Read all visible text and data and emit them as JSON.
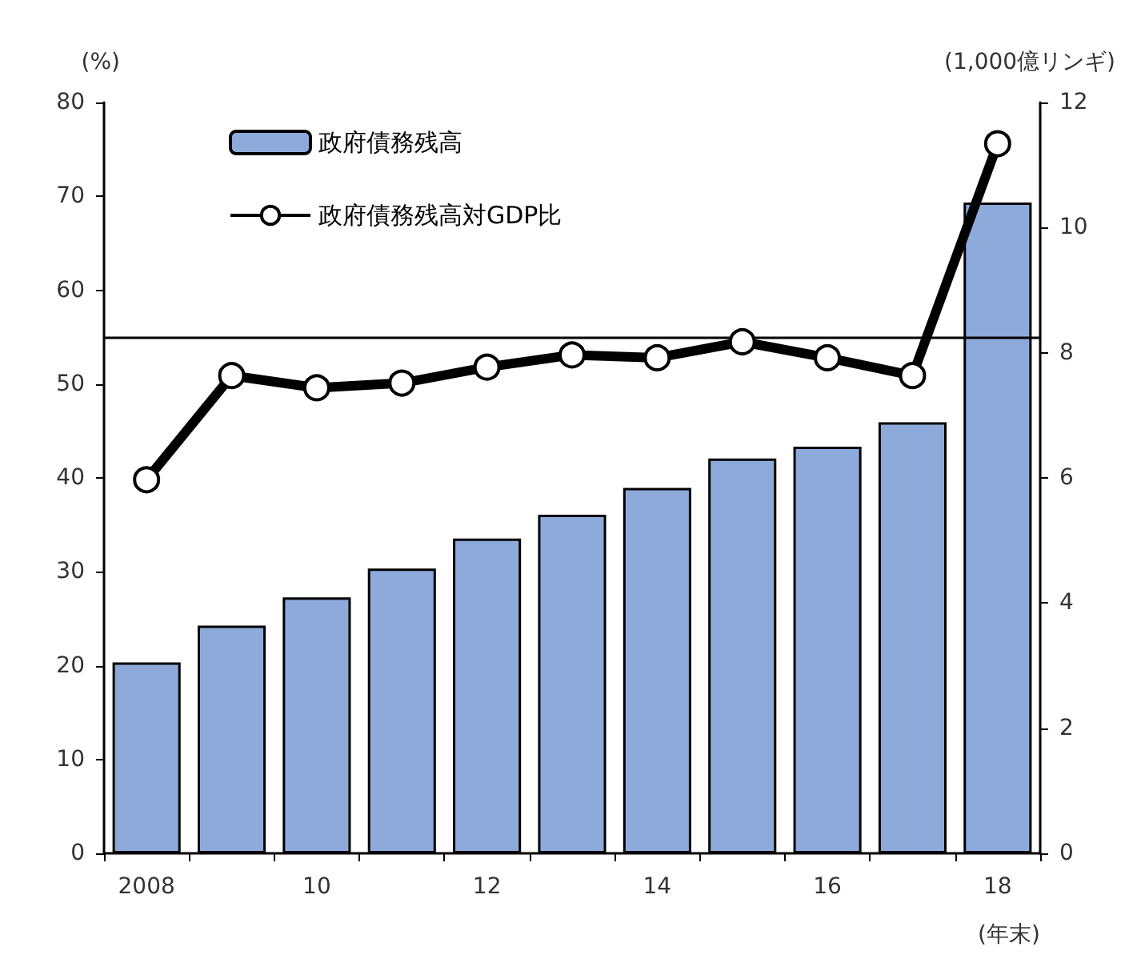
{
  "chart_data": {
    "type": "bar",
    "ylabel": "(%)",
    "y2label": "(1,000億リンギ)",
    "xlabel": "(年末)",
    "categories": [
      "2008",
      null,
      "10",
      null,
      "12",
      null,
      "14",
      null,
      "16",
      null,
      "18"
    ],
    "series": [
      {
        "name": "政府債務残高",
        "axis": "y2",
        "color": "#8eaadb",
        "values": [
          3.05,
          3.64,
          4.09,
          4.55,
          5.03,
          5.41,
          5.84,
          6.31,
          6.5,
          6.89,
          10.4
        ]
      },
      {
        "name": "政府債務残高対GDP比",
        "type": "line",
        "axis": "y",
        "color": "#000000",
        "marker": "circle",
        "values": [
          39.8,
          50.9,
          49.6,
          50.1,
          51.8,
          53.1,
          52.8,
          54.5,
          52.8,
          50.9,
          75.6
        ]
      }
    ],
    "ylim": [
      0,
      80
    ],
    "yticks": [
      0,
      10,
      20,
      30,
      40,
      50,
      60,
      70,
      80
    ],
    "y2lim": [
      0,
      12
    ],
    "y2ticks": [
      0,
      2,
      4,
      6,
      8,
      10,
      12
    ],
    "ref_lines": [
      {
        "axis": "y",
        "value": 55,
        "color": "#000000"
      }
    ],
    "grid": false,
    "legend": "top left"
  }
}
